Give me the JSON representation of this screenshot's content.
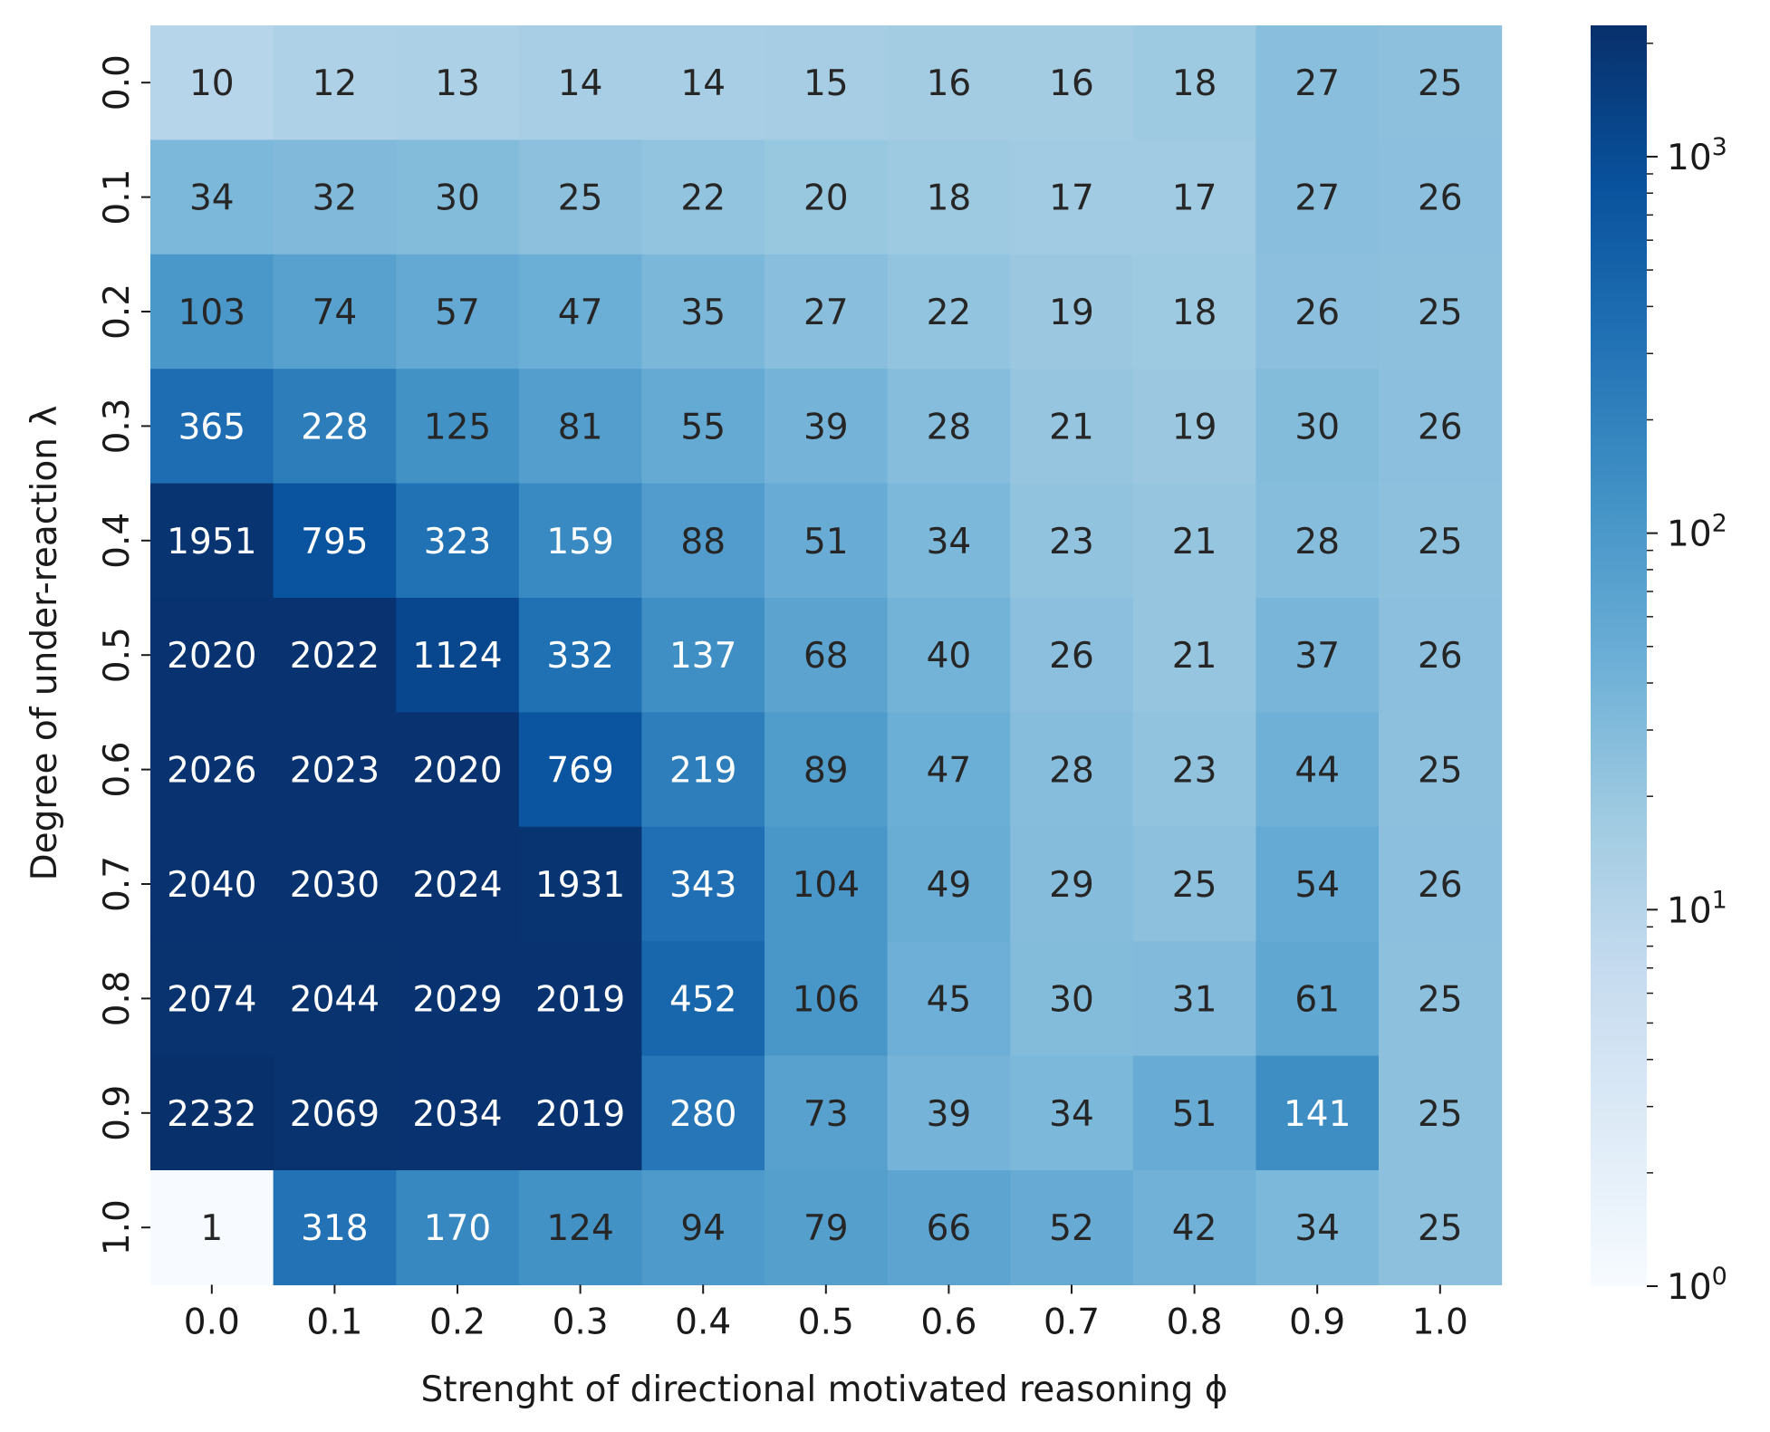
{
  "chart_data": {
    "type": "heatmap",
    "title": "",
    "xlabel": "Strenght of directional motivated reasoning ϕ",
    "ylabel": "Degree of under-reaction λ",
    "x_categories": [
      "0.0",
      "0.1",
      "0.2",
      "0.3",
      "0.4",
      "0.5",
      "0.6",
      "0.7",
      "0.8",
      "0.9",
      "1.0"
    ],
    "y_categories": [
      "0.0",
      "0.1",
      "0.2",
      "0.3",
      "0.4",
      "0.5",
      "0.6",
      "0.7",
      "0.8",
      "0.9",
      "1.0"
    ],
    "values": [
      [
        10,
        12,
        13,
        14,
        14,
        15,
        16,
        16,
        18,
        27,
        25
      ],
      [
        34,
        32,
        30,
        25,
        22,
        20,
        18,
        17,
        17,
        27,
        26
      ],
      [
        103,
        74,
        57,
        47,
        35,
        27,
        22,
        19,
        18,
        26,
        25
      ],
      [
        365,
        228,
        125,
        81,
        55,
        39,
        28,
        21,
        19,
        30,
        26
      ],
      [
        1951,
        795,
        323,
        159,
        88,
        51,
        34,
        23,
        21,
        28,
        25
      ],
      [
        2020,
        2022,
        1124,
        332,
        137,
        68,
        40,
        26,
        21,
        37,
        26
      ],
      [
        2026,
        2023,
        2020,
        769,
        219,
        89,
        47,
        28,
        23,
        44,
        25
      ],
      [
        2040,
        2030,
        2024,
        1931,
        343,
        104,
        49,
        29,
        25,
        54,
        26
      ],
      [
        2074,
        2044,
        2029,
        2019,
        452,
        106,
        45,
        30,
        31,
        61,
        25
      ],
      [
        2232,
        2069,
        2034,
        2019,
        280,
        73,
        39,
        34,
        51,
        141,
        25
      ],
      [
        1,
        318,
        170,
        124,
        94,
        79,
        66,
        52,
        42,
        34,
        25
      ]
    ],
    "colormap": "Blues",
    "color_scale": "log",
    "color_range": [
      1,
      2232
    ],
    "colorbar": {
      "major_ticks": [
        1,
        10,
        100,
        1000
      ],
      "tick_labels": [
        {
          "base": "10",
          "exp": "0"
        },
        {
          "base": "10",
          "exp": "1"
        },
        {
          "base": "10",
          "exp": "2"
        },
        {
          "base": "10",
          "exp": "3"
        }
      ]
    },
    "colors": {
      "text_dark": "#262626",
      "text_light": "#ffffff",
      "blues_stops": [
        "#f7fbff",
        "#deebf7",
        "#c6dbef",
        "#9ecae1",
        "#6baed6",
        "#4292c6",
        "#2171b5",
        "#08519c",
        "#08306b"
      ]
    },
    "grid": false
  }
}
